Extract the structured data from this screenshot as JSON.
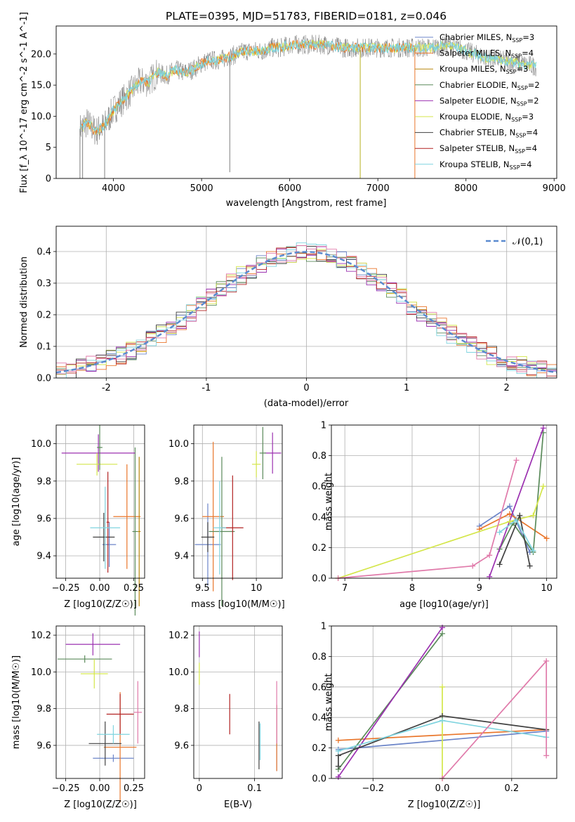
{
  "title": "PLATE=0395, MJD=51783, FIBERID=0181, z=0.046",
  "models": [
    {
      "name": "Chabrier MILES",
      "nssp": "3",
      "color": "#6b84c8"
    },
    {
      "name": "Salpeter MILES",
      "nssp": "4",
      "color": "#e9762b"
    },
    {
      "name": "Kroupa MILES",
      "nssp": "3",
      "color": "#b8860b"
    },
    {
      "name": "Chabrier ELODIE",
      "nssp": "2",
      "color": "#5a8a5a"
    },
    {
      "name": "Salpeter ELODIE",
      "nssp": "2",
      "color": "#9b30b0"
    },
    {
      "name": "Kroupa ELODIE",
      "nssp": "3",
      "color": "#d4e64a"
    },
    {
      "name": "Chabrier STELIB",
      "nssp": "4",
      "color": "#404040"
    },
    {
      "name": "Salpeter STELIB",
      "nssp": "4",
      "color": "#b22222"
    },
    {
      "name": "Kroupa STELIB",
      "nssp": "4",
      "color": "#7fd4df"
    }
  ],
  "chart_data": [
    {
      "type": "line",
      "panel": "spectrum",
      "xlabel": "wavelength [Angstrom, rest frame]",
      "ylabel": "Flux [f_λ 10^-17 erg cm^-2 s^-1 A^-1]",
      "xlim": [
        3350,
        9030
      ],
      "ylim": [
        0,
        24.5
      ],
      "xticks": [
        4000,
        5000,
        6000,
        7000,
        8000,
        9000
      ],
      "yticks": [
        0,
        5,
        10,
        15,
        20
      ],
      "grid": false,
      "legend": "right",
      "anchors": [
        [
          3620,
          8
        ],
        [
          3700,
          9
        ],
        [
          3800,
          7.5
        ],
        [
          3900,
          8.5
        ],
        [
          4000,
          11
        ],
        [
          4100,
          12.5
        ],
        [
          4200,
          14
        ],
        [
          4300,
          15.5
        ],
        [
          4400,
          15.5
        ],
        [
          4500,
          17
        ],
        [
          4600,
          16.5
        ],
        [
          4700,
          17.5
        ],
        [
          4800,
          17
        ],
        [
          4900,
          17.5
        ],
        [
          5000,
          18.5
        ],
        [
          5100,
          19
        ],
        [
          5200,
          19
        ],
        [
          5300,
          19.5
        ],
        [
          5400,
          20
        ],
        [
          5500,
          20.5
        ],
        [
          5600,
          20.5
        ],
        [
          5700,
          20.5
        ],
        [
          5800,
          21
        ],
        [
          5900,
          21
        ],
        [
          6000,
          21.5
        ],
        [
          6200,
          21.5
        ],
        [
          6400,
          21.5
        ],
        [
          6600,
          21
        ],
        [
          6800,
          21
        ],
        [
          7000,
          21
        ],
        [
          7200,
          21
        ],
        [
          7400,
          21
        ],
        [
          7600,
          21
        ],
        [
          7800,
          21.5
        ],
        [
          8000,
          20.5
        ],
        [
          8200,
          19.5
        ],
        [
          8400,
          19
        ],
        [
          8600,
          18.5
        ],
        [
          8800,
          18
        ]
      ]
    },
    {
      "type": "line",
      "panel": "residual-histogram",
      "xlabel": "(data-model)/error",
      "ylabel": "Normed distribution",
      "xlim": [
        -2.5,
        2.5
      ],
      "ylim": [
        0,
        0.48
      ],
      "xticks": [
        -2,
        -1,
        0,
        1,
        2
      ],
      "yticks": [
        0.0,
        0.1,
        0.2,
        0.3,
        0.4
      ],
      "grid": true,
      "legend": "top-right",
      "reference_label": "𝒩(0,1)",
      "reference_color": "#5b8bd0"
    },
    {
      "type": "scatter",
      "panel": "age-vs-Z",
      "xlabel": "Z [log10(Z/Z☉)]",
      "ylabel": "age [log10(age/yr)]",
      "xlim": [
        -0.32,
        0.33
      ],
      "ylim": [
        9.28,
        10.1
      ],
      "xticks": [
        -0.25,
        0.0,
        0.25
      ],
      "xticklabels": [
        "−0.25",
        "0.00",
        "0.25"
      ],
      "yticks": [
        9.4,
        9.6,
        9.8,
        10.0
      ],
      "grid": true,
      "points": [
        {
          "x": 0.07,
          "y": 9.46,
          "xerr": 0.05,
          "yerr": 0.12,
          "c": 0
        },
        {
          "x": 0.2,
          "y": 9.61,
          "xerr": 0.1,
          "yerr": 0.28,
          "c": 1
        },
        {
          "x": 0.26,
          "y": 9.53,
          "xerr": 0.02,
          "yerr": 0.45,
          "c": 3
        },
        {
          "x": -0.01,
          "y": 9.95,
          "xerr": 0.27,
          "yerr": 0.1,
          "c": 4
        },
        {
          "x": -0.02,
          "y": 9.89,
          "xerr": 0.15,
          "yerr": 0.06,
          "c": 5
        },
        {
          "x": 0.03,
          "y": 9.5,
          "xerr": 0.08,
          "yerr": 0.13,
          "c": 6
        },
        {
          "x": 0.06,
          "y": 9.58,
          "xerr": 0.01,
          "yerr": 0.27,
          "c": 7
        },
        {
          "x": 0.04,
          "y": 9.55,
          "xerr": 0.11,
          "yerr": 0.22,
          "c": 8
        },
        {
          "x": 0.29,
          "y": 9.53,
          "xerr": 0.01,
          "yerr": 0.4,
          "c": 2
        },
        {
          "x": 0.0,
          "y": 9.98,
          "xerr": 0.02,
          "yerr": 0.12,
          "c": 3
        }
      ]
    },
    {
      "type": "scatter",
      "panel": "age-vs-mass",
      "xlabel": "mass [log10(M/M☉)]",
      "ylabel": "",
      "xlim": [
        9.42,
        10.24
      ],
      "ylim": [
        9.28,
        10.1
      ],
      "xticks": [
        9.5,
        10.0
      ],
      "yticks": [
        9.4,
        9.6,
        9.8,
        10.0
      ],
      "grid": true,
      "points": [
        {
          "x": 9.55,
          "y": 9.46,
          "xerr": 0.12,
          "yerr": 0.22,
          "c": 0
        },
        {
          "x": 9.6,
          "y": 9.61,
          "xerr": 0.1,
          "yerr": 0.4,
          "c": 1
        },
        {
          "x": 9.68,
          "y": 9.53,
          "xerr": 0.12,
          "yerr": 0.4,
          "c": 3
        },
        {
          "x": 10.15,
          "y": 9.95,
          "xerr": 0.08,
          "yerr": 0.11,
          "c": 4
        },
        {
          "x": 10.0,
          "y": 9.89,
          "xerr": 0.04,
          "yerr": 0.07,
          "c": 5
        },
        {
          "x": 9.55,
          "y": 9.5,
          "xerr": 0.06,
          "yerr": 0.08,
          "c": 6
        },
        {
          "x": 9.78,
          "y": 9.55,
          "xerr": 0.1,
          "yerr": 0.28,
          "c": 7
        },
        {
          "x": 9.66,
          "y": 9.55,
          "xerr": 0.06,
          "yerr": 0.25,
          "c": 8
        },
        {
          "x": 10.06,
          "y": 9.95,
          "xerr": 0.03,
          "yerr": 0.14,
          "c": 3
        }
      ]
    },
    {
      "type": "line",
      "panel": "mass-weight-vs-age",
      "xlabel": "age [log10(age/yr)]",
      "ylabel": "mass weight",
      "xlim": [
        6.8,
        10.15
      ],
      "ylim": [
        0,
        1
      ],
      "xticks": [
        7,
        8,
        9,
        10
      ],
      "yticks": [
        0.0,
        0.2,
        0.4,
        0.6,
        0.8,
        1.0
      ],
      "grid": true,
      "series": [
        {
          "c": 0,
          "x": [
            9.0,
            9.45,
            9.75
          ],
          "y": [
            0.34,
            0.47,
            0.17
          ]
        },
        {
          "c": 1,
          "x": [
            9.0,
            9.45,
            10.0
          ],
          "y": [
            0.32,
            0.42,
            0.26
          ]
        },
        {
          "c": 3,
          "x": [
            9.3,
            9.5,
            9.8,
            9.95
          ],
          "y": [
            0.19,
            0.36,
            0.17,
            0.95
          ]
        },
        {
          "c": 4,
          "x": [
            9.15,
            9.95
          ],
          "y": [
            0.01,
            0.98
          ]
        },
        {
          "c": 5,
          "x": [
            6.9,
            9.45,
            9.8,
            9.95
          ],
          "y": [
            0.0,
            0.37,
            0.41,
            0.6
          ]
        },
        {
          "c": 6,
          "x": [
            9.3,
            9.6,
            9.75
          ],
          "y": [
            0.09,
            0.41,
            0.08
          ]
        },
        {
          "c": 8,
          "x": [
            9.3,
            9.55,
            9.8
          ],
          "y": [
            0.3,
            0.38,
            0.18
          ]
        },
        {
          "c": 9,
          "x": [
            6.9,
            8.9,
            9.15,
            9.55
          ],
          "y": [
            0.0,
            0.08,
            0.15,
            0.77
          ]
        }
      ]
    },
    {
      "type": "scatter",
      "panel": "mass-vs-Z",
      "xlabel": "Z [log10(Z/Z☉)]",
      "ylabel": "mass [log10(M/M☉)]",
      "xlim": [
        -0.32,
        0.33
      ],
      "ylim": [
        9.42,
        10.25
      ],
      "xticks": [
        -0.25,
        0.0,
        0.25
      ],
      "xticklabels": [
        "−0.25",
        "0.00",
        "0.25"
      ],
      "yticks": [
        9.6,
        9.8,
        10.0,
        10.2
      ],
      "grid": true,
      "points": [
        {
          "x": 0.1,
          "y": 9.53,
          "xerr": 0.15,
          "yerr": 0.02,
          "c": 0
        },
        {
          "x": 0.15,
          "y": 9.59,
          "xerr": 0.12,
          "yerr": 0.3,
          "c": 1
        },
        {
          "x": -0.11,
          "y": 10.07,
          "xerr": 0.2,
          "yerr": 0.02,
          "c": 3
        },
        {
          "x": -0.05,
          "y": 10.15,
          "xerr": 0.2,
          "yerr": 0.06,
          "c": 4
        },
        {
          "x": -0.04,
          "y": 9.99,
          "xerr": 0.1,
          "yerr": 0.08,
          "c": 5
        },
        {
          "x": 0.04,
          "y": 9.61,
          "xerr": 0.12,
          "yerr": 0.12,
          "c": 6
        },
        {
          "x": 0.15,
          "y": 9.77,
          "xerr": 0.1,
          "yerr": 0.11,
          "c": 7
        },
        {
          "x": 0.1,
          "y": 9.66,
          "xerr": 0.12,
          "yerr": 0.05,
          "c": 8
        },
        {
          "x": 0.28,
          "y": 9.78,
          "xerr": 0.03,
          "yerr": 0.17,
          "c": 9
        }
      ]
    },
    {
      "type": "scatter",
      "panel": "mass-vs-ebv",
      "xlabel": "E(B-V)",
      "ylabel": "",
      "xlim": [
        -0.01,
        0.15
      ],
      "ylim": [
        9.42,
        10.25
      ],
      "xticks": [
        0.0,
        0.1
      ],
      "yticks": [
        9.6,
        9.8,
        10.0,
        10.2
      ],
      "grid": true,
      "points": [
        {
          "x": 0.14,
          "y": 9.64,
          "xerr": 0,
          "yerr": 0.18,
          "c": 0
        },
        {
          "x": 0.14,
          "y": 9.64,
          "xerr": 0,
          "yerr": 0.18,
          "c": 1
        },
        {
          "x": 0.0,
          "y": 10.15,
          "xerr": 0,
          "yerr": 0.07,
          "c": 4
        },
        {
          "x": 0.0,
          "y": 9.99,
          "xerr": 0,
          "yerr": 0.06,
          "c": 5
        },
        {
          "x": 0.108,
          "y": 9.6,
          "xerr": 0,
          "yerr": 0.13,
          "c": 6
        },
        {
          "x": 0.055,
          "y": 9.77,
          "xerr": 0,
          "yerr": 0.11,
          "c": 7
        },
        {
          "x": 0.11,
          "y": 9.62,
          "xerr": 0,
          "yerr": 0.1,
          "c": 8
        },
        {
          "x": 0.14,
          "y": 9.78,
          "xerr": 0,
          "yerr": 0.17,
          "c": 9
        }
      ]
    },
    {
      "type": "line",
      "panel": "mass-weight-vs-Z",
      "xlabel": "Z [log10(Z/Z☉)]",
      "ylabel": "mass weight",
      "xlim": [
        -0.32,
        0.33
      ],
      "ylim": [
        0,
        1
      ],
      "xticks": [
        -0.2,
        0.0,
        0.2
      ],
      "xticklabels": [
        "−0.2",
        "0.0",
        "0.2"
      ],
      "yticks": [
        0.0,
        0.2,
        0.4,
        0.6,
        0.8,
        1.0
      ],
      "grid": true,
      "series": [
        {
          "c": 0,
          "x": [
            -0.3,
            0.3
          ],
          "y": [
            0.19,
            0.31
          ]
        },
        {
          "c": 1,
          "x": [
            -0.3,
            0.3
          ],
          "y": [
            0.25,
            0.32
          ]
        },
        {
          "c": 3,
          "x": [
            -0.3,
            0.0
          ],
          "y": [
            0.06,
            0.95
          ]
        },
        {
          "c": 4,
          "x": [
            -0.3,
            0.0
          ],
          "y": [
            0.01,
            0.99
          ]
        },
        {
          "c": 5,
          "x": [
            0.0,
            0.0
          ],
          "y": [
            0.0,
            0.6
          ]
        },
        {
          "c": 6,
          "x": [
            -0.3,
            -0.3,
            0.0,
            0.3
          ],
          "y": [
            0.08,
            0.15,
            0.41,
            0.32
          ]
        },
        {
          "c": 8,
          "x": [
            -0.3,
            0.0,
            0.3
          ],
          "y": [
            0.18,
            0.38,
            0.27
          ]
        },
        {
          "c": 9,
          "x": [
            0.0,
            0.3,
            0.3
          ],
          "y": [
            0.0,
            0.77,
            0.15
          ]
        }
      ]
    }
  ]
}
